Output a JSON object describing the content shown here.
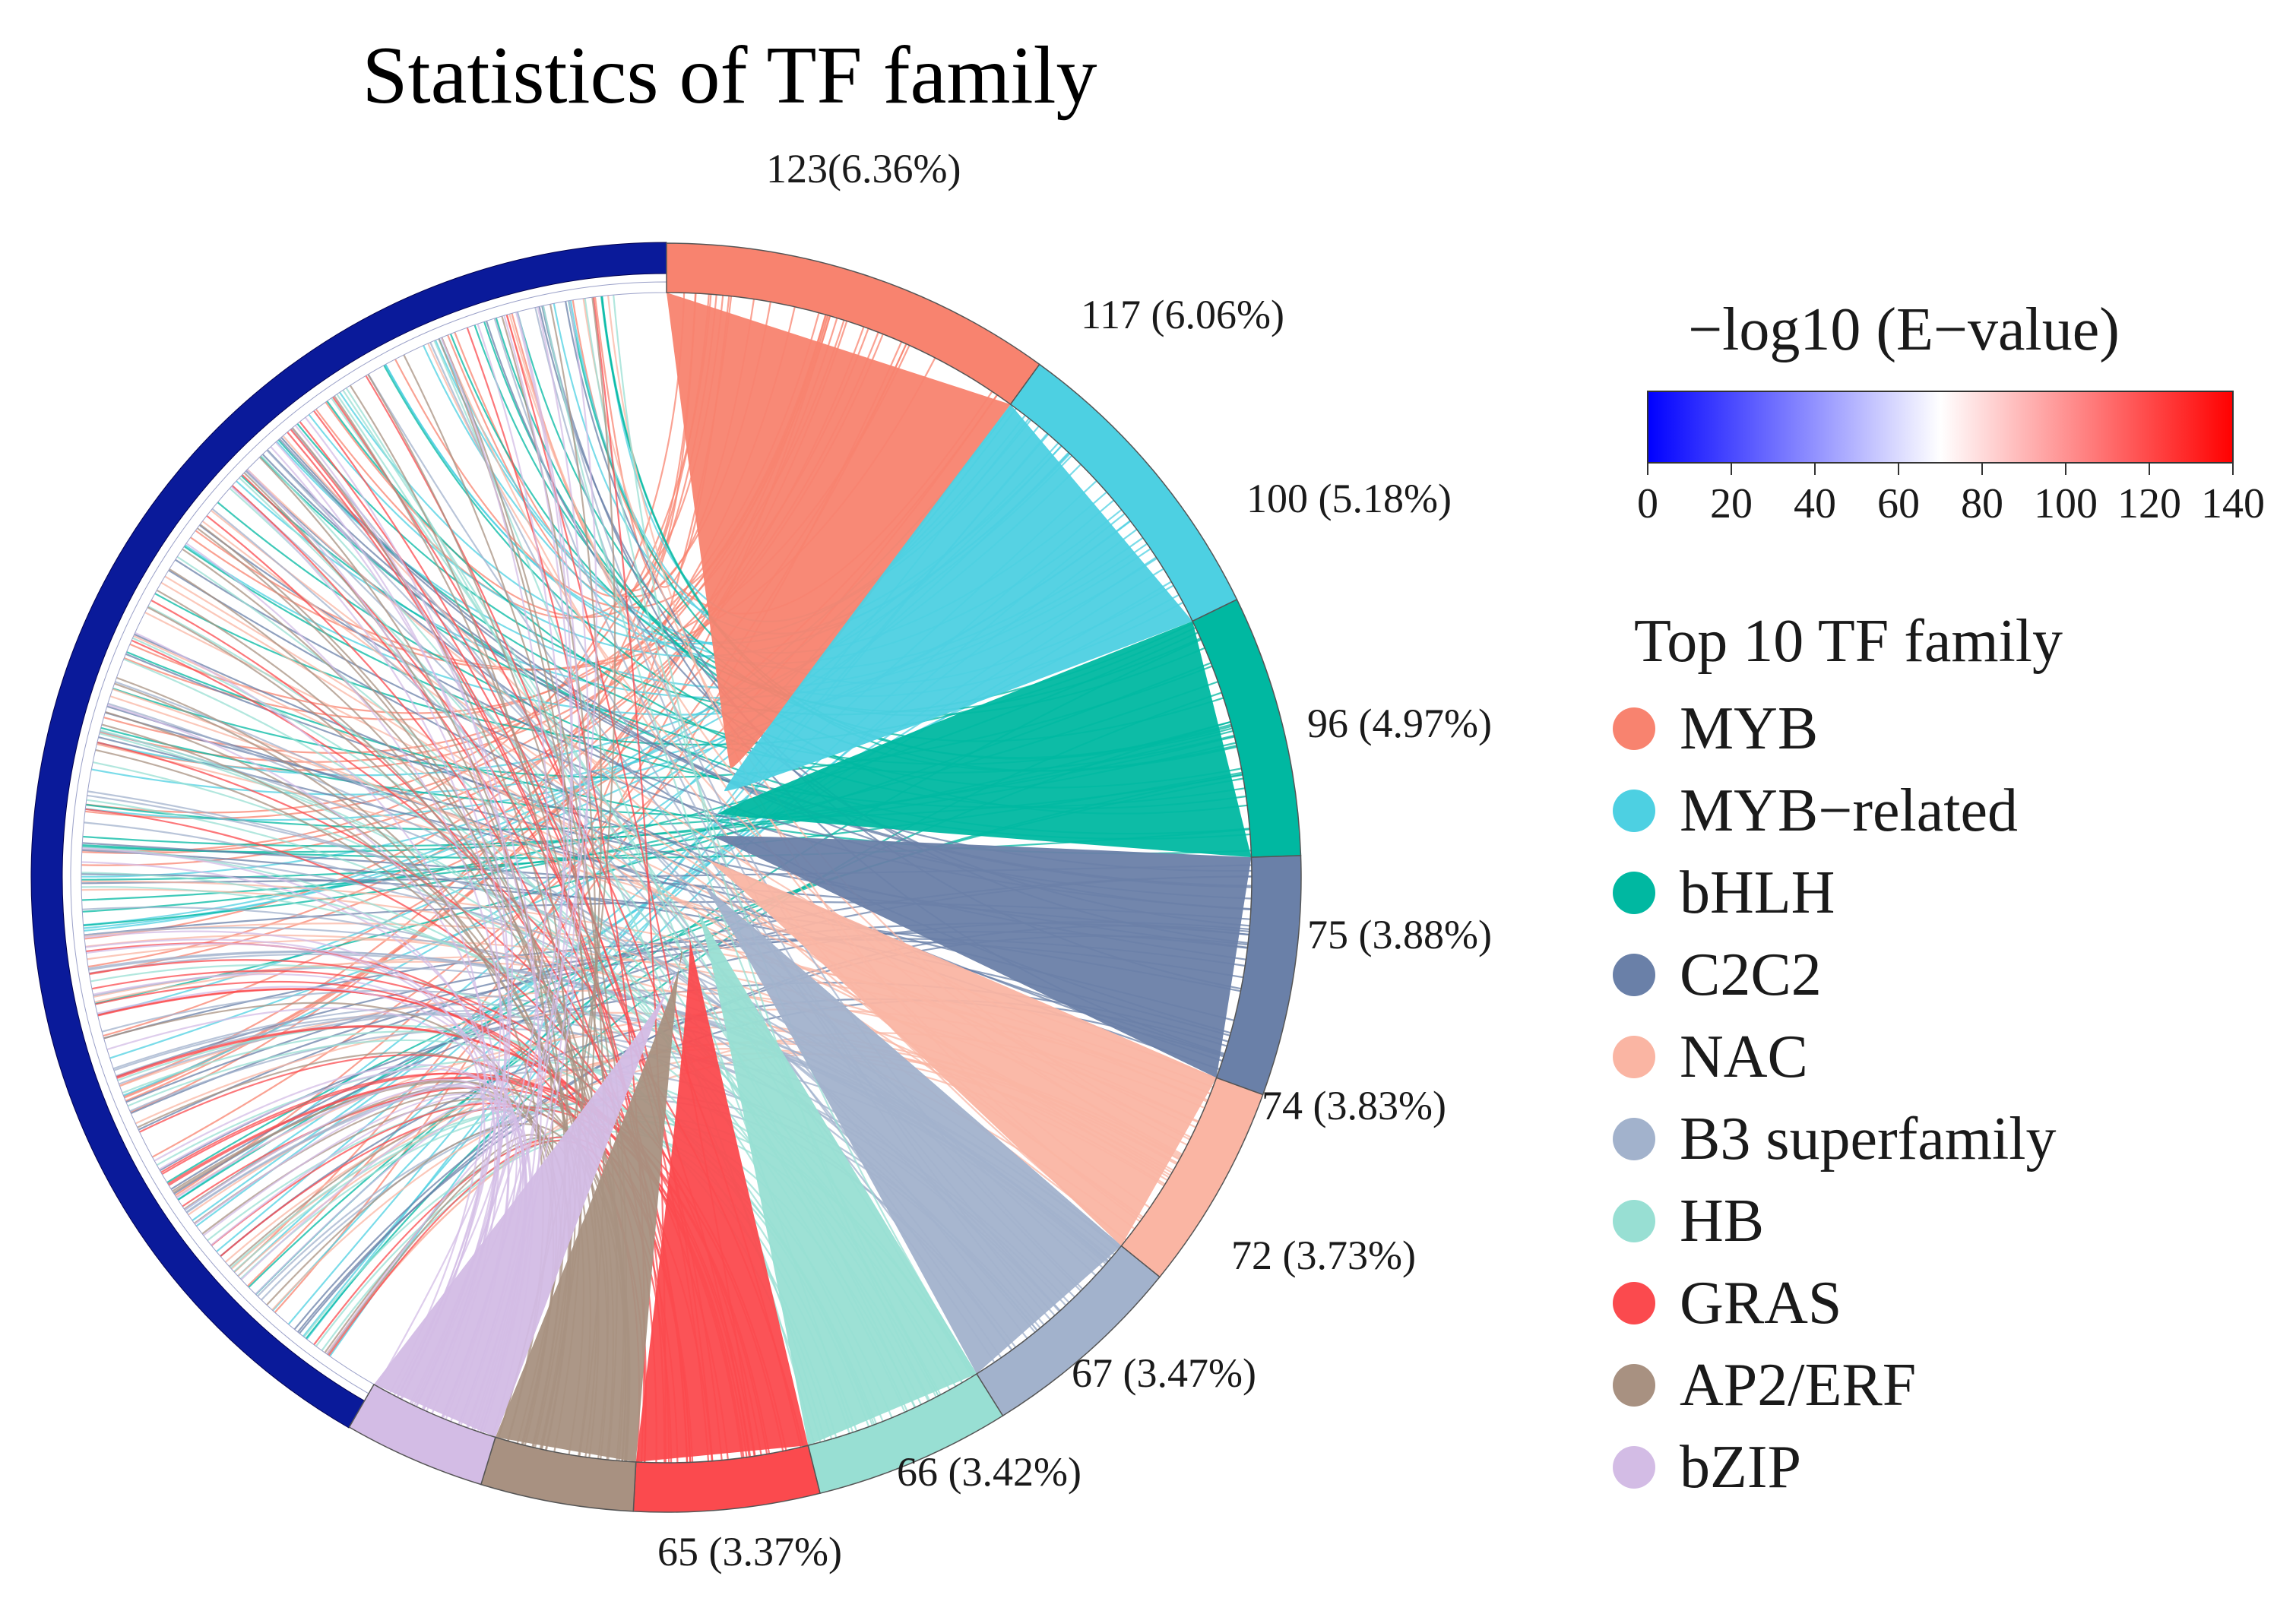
{
  "chart_data": {
    "type": "chord",
    "title": "Statistics of TF family",
    "segments": [
      {
        "name": "MYB",
        "count": 123,
        "label": "123(6.36%)",
        "color": "#F8836F"
      },
      {
        "name": "MYB−related",
        "count": 117,
        "label": "117 (6.06%)",
        "color": "#4DD0E2"
      },
      {
        "name": "bHLH",
        "count": 100,
        "label": "100 (5.18%)",
        "color": "#00B8A1"
      },
      {
        "name": "C2C2",
        "count": 96,
        "label": "96 (4.97%)",
        "color": "#6A80A8"
      },
      {
        "name": "NAC",
        "count": 75,
        "label": "75 (3.88%)",
        "color": "#FAB5A3"
      },
      {
        "name": "B3 superfamily",
        "count": 74,
        "label": "74 (3.83%)",
        "color": "#A2B2CC"
      },
      {
        "name": "HB",
        "count": 72,
        "label": "72 (3.73%)",
        "color": "#98DFD3"
      },
      {
        "name": "GRAS",
        "count": 67,
        "label": "67 (3.47%)",
        "color": "#FB4A4E"
      },
      {
        "name": "AP2/ERF",
        "count": 66,
        "label": "66 (3.42%)",
        "color": "#A89181"
      },
      {
        "name": "bZIP",
        "count": 65,
        "label": "65 (3.37%)",
        "color": "#D3BCE5"
      }
    ],
    "colorbar": {
      "title": "−log10 (E−value)",
      "range": [
        0,
        140
      ],
      "ticks": [
        "0",
        "20",
        "40",
        "60",
        "80",
        "100",
        "120",
        "140"
      ],
      "colors": [
        "#0000FF",
        "#FFFFFF",
        "#FF0000"
      ]
    },
    "legend": {
      "title": "Top 10 TF family",
      "placement": "right"
    },
    "ring_color": "#0A1A9A"
  }
}
